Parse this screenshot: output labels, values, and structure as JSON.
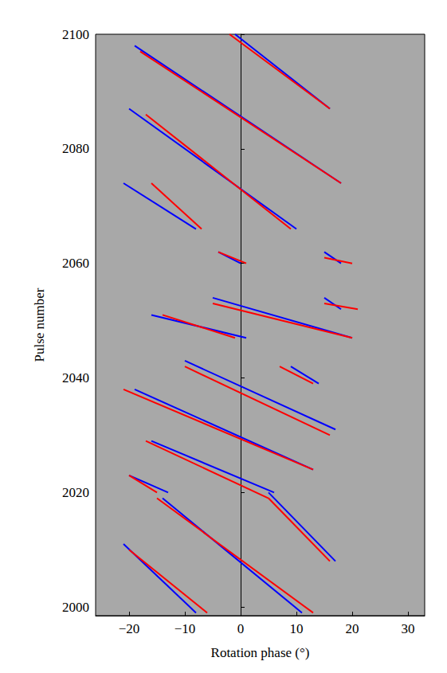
{
  "chart_data": {
    "type": "segments",
    "x_label": "Rotation phase (°)",
    "y_label": "Pulse number",
    "xlim": [
      -26,
      33
    ],
    "ylim": [
      1998.5,
      2100
    ],
    "xticks": [
      {
        "value": -20,
        "label": "−20"
      },
      {
        "value": -10,
        "label": "−10"
      },
      0,
      10,
      20,
      30
    ],
    "yticks": [
      2000,
      2020,
      2040,
      2060,
      2080,
      2100
    ],
    "grid": false,
    "series": [
      {
        "color": "#0000ff",
        "line_style": "solid",
        "values": [
          [
            -1,
            2100,
            16,
            2087
          ],
          [
            -19,
            2098,
            18,
            2074
          ],
          [
            -20,
            2087,
            10,
            2066
          ],
          [
            -21,
            2074,
            -8,
            2066
          ],
          [
            -4,
            2062,
            0,
            2060
          ],
          [
            15,
            2062,
            18,
            2060
          ],
          [
            15,
            2054,
            18,
            2052
          ],
          [
            -5,
            2054,
            20,
            2047
          ],
          [
            -16,
            2051,
            1,
            2047
          ],
          [
            -10,
            2043,
            17,
            2031
          ],
          [
            9,
            2042,
            14,
            2039
          ],
          [
            -19,
            2038,
            13,
            2024
          ],
          [
            -16,
            2029,
            6,
            2020
          ],
          [
            -20,
            2023,
            -13,
            2020
          ],
          [
            -14,
            2019,
            11,
            1999
          ],
          [
            -21,
            2011,
            -8,
            1999
          ],
          [
            5,
            2020,
            17,
            2008
          ]
        ]
      },
      {
        "color": "#ff0000",
        "line_style": "solid",
        "values": [
          [
            -2,
            2100,
            16,
            2087
          ],
          [
            -18,
            2097,
            18,
            2074
          ],
          [
            -17,
            2086,
            9,
            2066
          ],
          [
            -16,
            2074,
            -7,
            2066
          ],
          [
            -4,
            2062,
            1,
            2060
          ],
          [
            15,
            2061,
            20,
            2060
          ],
          [
            15,
            2053,
            21,
            2052
          ],
          [
            -5,
            2053,
            20,
            2047
          ],
          [
            -14,
            2051,
            -1,
            2047
          ],
          [
            -10,
            2042,
            16,
            2030
          ],
          [
            7,
            2042,
            13,
            2039
          ],
          [
            -21,
            2038,
            13,
            2024
          ],
          [
            -17,
            2029,
            5,
            2019
          ],
          [
            -20,
            2023,
            -15,
            2020
          ],
          [
            -15,
            2019,
            13,
            1999
          ],
          [
            -20,
            2010,
            -6,
            1999
          ],
          [
            5,
            2019,
            16,
            2008
          ]
        ]
      }
    ]
  }
}
